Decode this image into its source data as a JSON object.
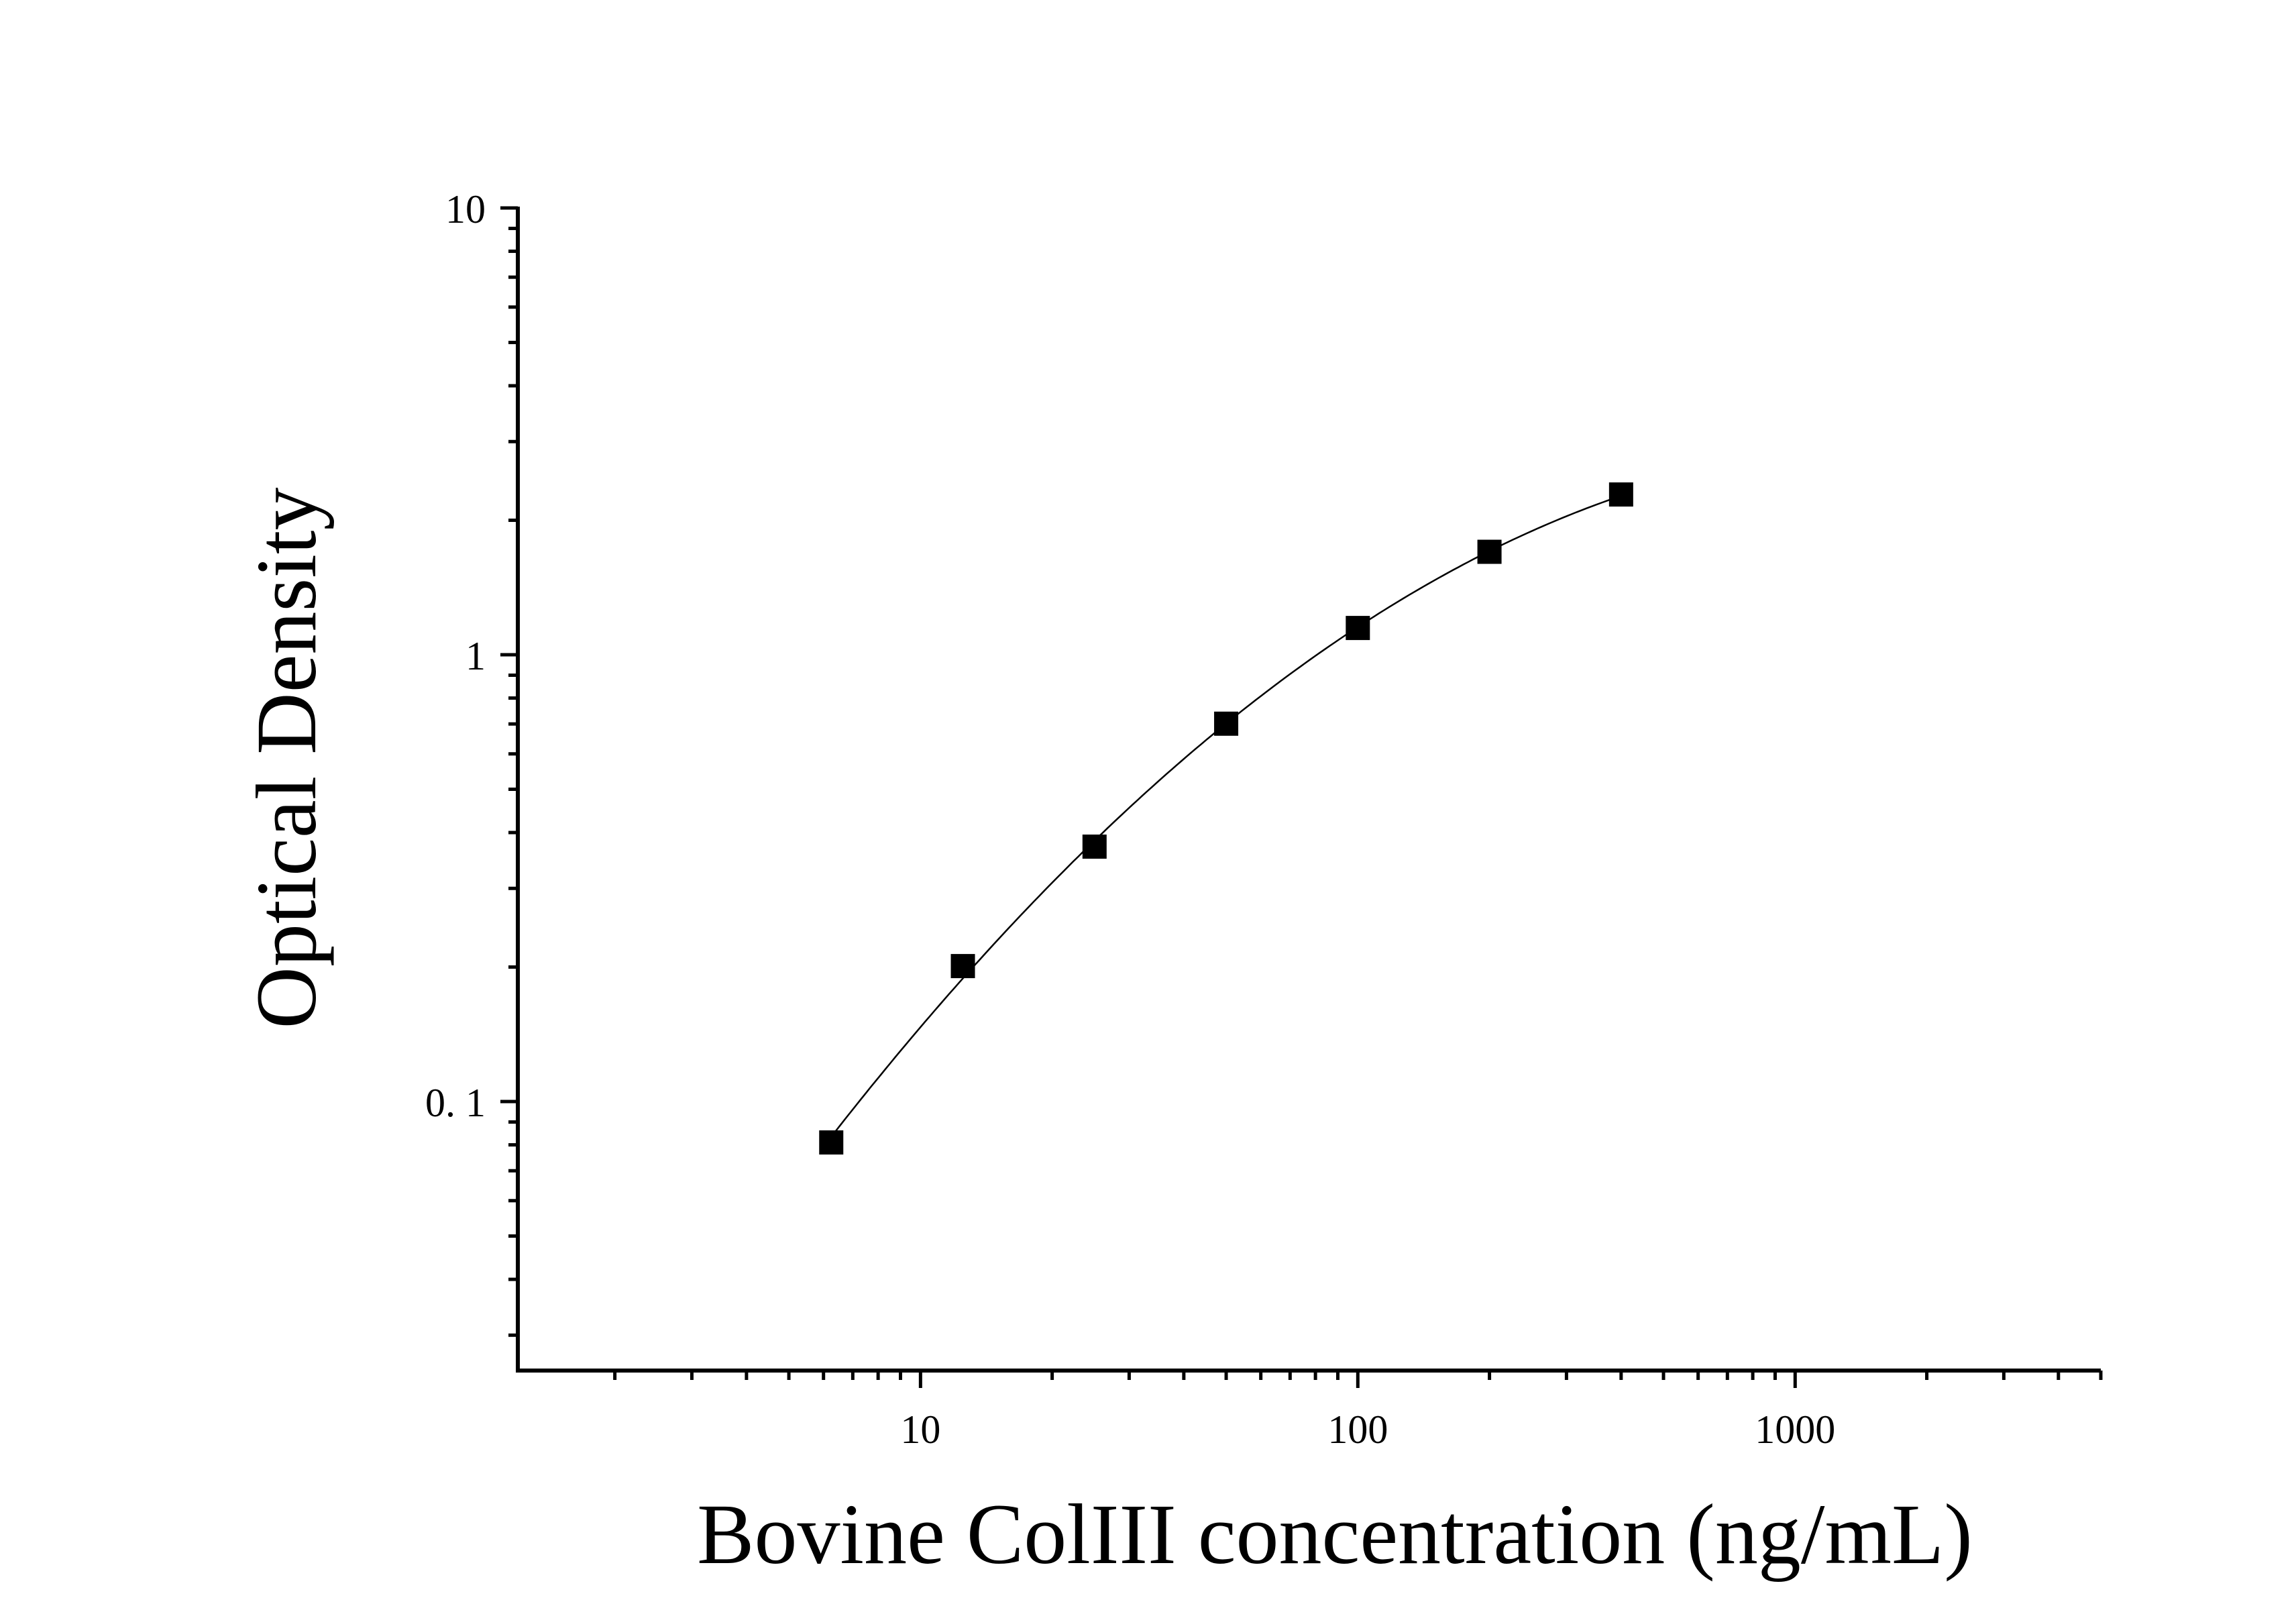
{
  "chart_data": {
    "type": "scatter",
    "xlabel": "Bovine ColIII concentration (ng/mL)",
    "ylabel": "Optical Density",
    "x_scale": "log",
    "y_scale": "log",
    "xlim": [
      1.2,
      5000
    ],
    "ylim": [
      0.025,
      10
    ],
    "x_ticks": [
      {
        "value": 10,
        "label": "10"
      },
      {
        "value": 100,
        "label": "100"
      },
      {
        "value": 1000,
        "label": "1000"
      }
    ],
    "y_ticks": [
      {
        "value": 10,
        "label": "10"
      },
      {
        "value": 1,
        "label": "1"
      },
      {
        "value": 0.1,
        "label": "0. 1"
      }
    ],
    "grid": false,
    "series": [
      {
        "x": [
          6.25,
          12.5,
          25,
          50,
          100,
          200,
          400
        ],
        "y": [
          0.081,
          0.201,
          0.372,
          0.701,
          1.148,
          1.7,
          2.284
        ],
        "marker": "square",
        "fit_curve": true
      }
    ],
    "colors": {
      "marker": "#000000",
      "axis": "#000000",
      "curve": "#000000"
    }
  }
}
